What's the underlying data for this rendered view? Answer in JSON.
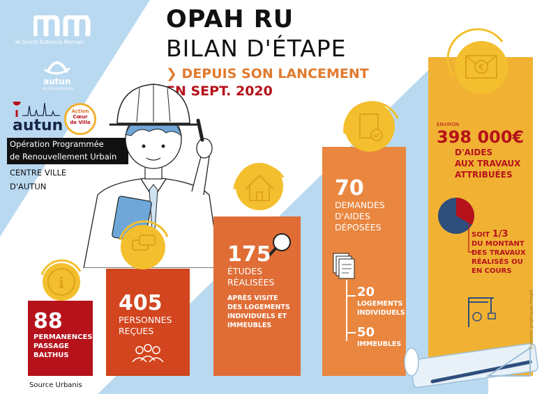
{
  "header": {
    "title": "OPAH RU",
    "subtitle": "BILAN D'ÉTAPE",
    "since_line1": "DEPUIS SON LANCEMENT",
    "since_line2": "EN SEPT. 2020"
  },
  "logos": {
    "gam_tagline": "le Grand Autunois Morvan",
    "autun_small": "autun",
    "autun_small_sub": "VILLE EN BOURGOGNE",
    "autun_city": "autun",
    "acv_line1": "Action",
    "acv_line2": "Cœur",
    "acv_line3": "de Ville"
  },
  "operation": {
    "line1": "Opération Programmée",
    "line2": "de Renouvellement Urbain",
    "line3": "CENTRE VILLE",
    "line4": "D'AUTUN"
  },
  "stats": {
    "permanences": {
      "value": "88",
      "line1": "PERMANENCES",
      "line2": "PASSAGE",
      "line3": "BALTHUS"
    },
    "personnes": {
      "value": "405",
      "line1": "PERSONNES",
      "line2": "REÇUES"
    },
    "etudes": {
      "value": "175",
      "line1": "ÉTUDES",
      "line2": "RÉALISÉES",
      "note1": "APRÈS VISITE",
      "note2": "DES LOGEMENTS",
      "note3": "INDIVIDUELS ET",
      "note4": "IMMEUBLES"
    },
    "demandes": {
      "value": "70",
      "line1": "DEMANDES",
      "line2": "D'AIDES",
      "line3": "DÉPOSÉES",
      "sub1_value": "20",
      "sub1_line1": "LOGEMENTS",
      "sub1_line2": "INDIVIDUELS",
      "sub2_value": "50",
      "sub2_line1": "IMMEUBLES"
    },
    "aides": {
      "environ": "ENVIRON",
      "value": "398 000€",
      "line1": "D'AIDES",
      "line2": "AUX TRAVAUX",
      "line3": "ATTRIBUÉES",
      "ratio_prefix": "SOIT ",
      "ratio": "1/3",
      "ratio_line1": "DU MONTANT",
      "ratio_line2": "DES TRAVAUX",
      "ratio_line3": "RÉALISÉS OU",
      "ratio_line4": "EN COURS",
      "pie_fraction": 0.333
    }
  },
  "footer": {
    "source": "Source Urbanis",
    "credit": "Éléments graphiques freepik"
  },
  "colors": {
    "bar1": "#b5121b",
    "bar2": "#d2451e",
    "bar3": "#e06d36",
    "bar4": "#e9863f",
    "bar5": "#f1b233",
    "light_blue": "#b9d9f0",
    "navy": "#17244a",
    "coin": "#f3bf2e",
    "pie_blue": "#2e4e7c",
    "pie_red": "#b5121b"
  }
}
